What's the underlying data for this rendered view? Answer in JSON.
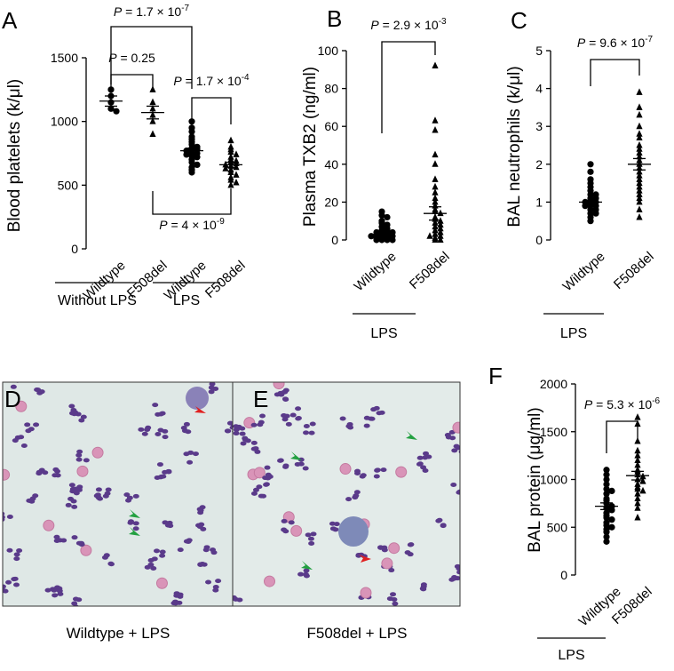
{
  "chart_data": [
    {
      "type": "strip",
      "panel": "A",
      "y_label": "Blood platelets (k/μl)",
      "categories": [
        "Wildtype",
        "F508del",
        "Wildtype",
        "F508del"
      ],
      "group_labels": [
        "Without LPS",
        "LPS"
      ],
      "markers": [
        "circle",
        "triangle",
        "circle",
        "triangle"
      ],
      "points": [
        [
          1250,
          1200,
          1150,
          1100,
          1080
        ],
        [
          1250,
          1150,
          1100,
          1050,
          1000,
          900
        ],
        [
          1000,
          950,
          920,
          880,
          860,
          840,
          820,
          800,
          790,
          780,
          770,
          760,
          750,
          740,
          730,
          720,
          700,
          680,
          660,
          640,
          620,
          600
        ],
        [
          850,
          800,
          780,
          760,
          740,
          720,
          700,
          690,
          680,
          670,
          660,
          650,
          640,
          630,
          620,
          600,
          580,
          560,
          540,
          520,
          500
        ]
      ],
      "means": [
        1160,
        1070,
        770,
        660
      ],
      "sems": [
        40,
        50,
        20,
        20
      ],
      "ylim": [
        0,
        1500
      ],
      "yticks": [
        0,
        500,
        1000,
        1500
      ],
      "comparisons": [
        {
          "between": [
            0,
            1
          ],
          "text": "P = 0.25",
          "exp": ""
        },
        {
          "between": [
            0,
            2
          ],
          "text": "P = 1.7 × 10",
          "exp": "-7"
        },
        {
          "between": [
            2,
            3
          ],
          "text": "P = 1.7 × 10",
          "exp": "-4"
        },
        {
          "between": [
            1,
            3
          ],
          "text": "P = 4 × 10",
          "exp": "-9"
        }
      ]
    },
    {
      "type": "strip",
      "panel": "B",
      "y_label": "Plasma TXB2 (ng/ml)",
      "categories": [
        "Wildtype",
        "F508del"
      ],
      "group_labels": [
        "LPS"
      ],
      "markers": [
        "circle",
        "triangle"
      ],
      "points": [
        [
          15,
          13,
          12,
          10,
          9,
          8,
          7,
          6,
          5,
          5,
          4,
          4,
          3,
          3,
          2,
          2,
          2,
          1,
          1,
          1,
          0,
          0,
          0,
          0
        ],
        [
          92,
          63,
          58,
          45,
          40,
          32,
          28,
          25,
          22,
          20,
          18,
          16,
          15,
          14,
          12,
          11,
          10,
          9,
          8,
          7,
          6,
          5,
          4,
          3,
          2,
          2,
          1,
          0,
          0
        ]
      ],
      "means": [
        3,
        14
      ],
      "sems": [
        1,
        3.5
      ],
      "ylim": [
        0,
        100
      ],
      "yticks": [
        0,
        20,
        40,
        60,
        80,
        100
      ],
      "comparisons": [
        {
          "between": [
            0,
            1
          ],
          "text": "P = 2.9 × 10",
          "exp": "-3"
        }
      ]
    },
    {
      "type": "strip",
      "panel": "C",
      "y_label": "BAL neutrophils (k/μl)",
      "categories": [
        "Wildtype",
        "F508del"
      ],
      "group_labels": [
        "LPS"
      ],
      "markers": [
        "circle",
        "triangle"
      ],
      "points": [
        [
          2.0,
          1.8,
          1.6,
          1.5,
          1.4,
          1.3,
          1.2,
          1.2,
          1.1,
          1.1,
          1.0,
          1.0,
          1.0,
          0.9,
          0.9,
          0.9,
          0.8,
          0.8,
          0.7,
          0.7,
          0.6,
          0.5
        ],
        [
          3.9,
          3.5,
          3.3,
          3.0,
          2.8,
          2.7,
          2.5,
          2.4,
          2.3,
          2.2,
          2.1,
          2.0,
          1.9,
          1.8,
          1.7,
          1.6,
          1.5,
          1.4,
          1.3,
          1.2,
          1.1,
          1.0,
          0.8,
          0.6
        ]
      ],
      "means": [
        1.0,
        2.0
      ],
      "sems": [
        0.05,
        0.15
      ],
      "ylim": [
        0,
        5
      ],
      "yticks": [
        0,
        1,
        2,
        3,
        4,
        5
      ],
      "comparisons": [
        {
          "between": [
            0,
            1
          ],
          "text": "P = 9.6 × 10",
          "exp": "-7"
        }
      ]
    },
    {
      "type": "strip",
      "panel": "F",
      "y_label": "BAL protein (μg/ml)",
      "categories": [
        "Wildtype",
        "F508del"
      ],
      "group_labels": [
        "LPS"
      ],
      "markers": [
        "circle",
        "triangle"
      ],
      "points": [
        [
          1100,
          1050,
          1000,
          950,
          900,
          880,
          850,
          800,
          780,
          750,
          720,
          700,
          680,
          650,
          620,
          600,
          580,
          550,
          520,
          500,
          480,
          450,
          400,
          350
        ],
        [
          1650,
          1580,
          1400,
          1300,
          1250,
          1200,
          1150,
          1100,
          1080,
          1050,
          1030,
          1000,
          980,
          950,
          920,
          900,
          880,
          850,
          800,
          750,
          700,
          600
        ]
      ],
      "means": [
        720,
        1040
      ],
      "sems": [
        35,
        45
      ],
      "ylim": [
        0,
        2000
      ],
      "yticks": [
        0,
        500,
        1000,
        1500,
        2000
      ],
      "comparisons": [
        {
          "between": [
            0,
            1
          ],
          "text": "P = 5.3 × 10",
          "exp": "-6"
        }
      ]
    }
  ],
  "micrographs": [
    {
      "panel": "D",
      "caption": "Wildtype + LPS"
    },
    {
      "panel": "E",
      "caption": "F508del + LPS"
    }
  ]
}
